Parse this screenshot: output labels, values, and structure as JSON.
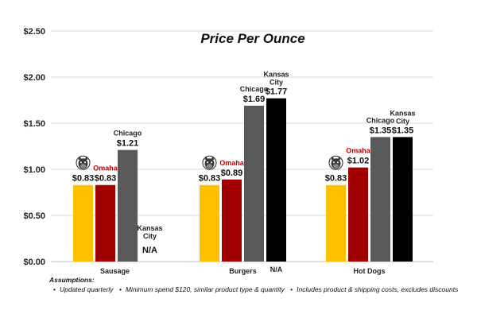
{
  "chart_data": {
    "type": "bar",
    "title": "Price Per Ounce",
    "categories": [
      "Sausage",
      "Burgers",
      "Hot Dogs"
    ],
    "y_tick_labels": [
      "$0.00",
      "$0.50",
      "$1.00",
      "$1.50",
      "$2.00",
      "$2.50"
    ],
    "ylim": [
      0,
      2.5
    ],
    "grid": true,
    "series": [
      {
        "key": "logo",
        "tag": "",
        "color": "#ffc000",
        "values": [
          0.83,
          0.83,
          0.83
        ],
        "labels": [
          "$0.83",
          "$0.83",
          "$0.83"
        ]
      },
      {
        "key": "omaha",
        "tag": "Omaha",
        "color": "#a00000",
        "values": [
          0.83,
          0.89,
          1.02
        ],
        "labels": [
          "$0.83",
          "$0.89",
          "$1.02"
        ]
      },
      {
        "key": "chicago",
        "tag": "Chicago",
        "color": "#595959",
        "values": [
          1.21,
          1.69,
          1.35
        ],
        "labels": [
          "$1.21",
          "$1.69",
          "$1.35"
        ]
      },
      {
        "key": "kansas",
        "tag": "Kansas City",
        "color": "#000000",
        "values": [
          null,
          1.77,
          1.35
        ],
        "labels": [
          "N/A",
          "$1.77",
          "$1.35"
        ]
      }
    ],
    "extra_labels": {
      "burgers_kansas_below": "N/A"
    },
    "logo_icon": "dog-face-icon",
    "colors": {
      "series_tag_omaha": "#c00000",
      "text": "#111111",
      "grid": "#d9d9d9"
    }
  },
  "notes": {
    "heading": "Assumptions:",
    "items": [
      "Updated quarterly",
      "Minimum spend $120, similar product type & quantity",
      "Includes product & shipping costs, excludes discounts"
    ]
  }
}
